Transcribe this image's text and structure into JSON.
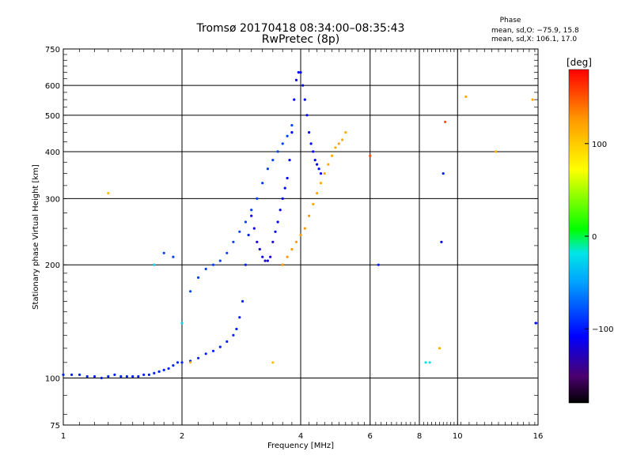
{
  "chart_data": {
    "type": "scatter",
    "title": "Tromsø 20170418 08:34:00–08:35:43",
    "subtitle": "RwPretec (8p)",
    "xlabel": "Frequency [MHz]",
    "ylabel": "Stationary phase Virtual Height [km]",
    "x_scale": "log",
    "y_scale": "log",
    "xlim": [
      1,
      16
    ],
    "ylim": [
      75,
      750
    ],
    "x_ticks": [
      "1",
      "2",
      "4",
      "6",
      "8",
      "10",
      "16"
    ],
    "y_ticks": [
      "750",
      "600",
      "500",
      "400",
      "300",
      "200",
      "100",
      "75"
    ],
    "grid": true,
    "phase_header": "Phase",
    "phase_stats": [
      "mean, sd,O: −75.9, 15.8",
      "mean, sd,X: 106.1, 17.0"
    ],
    "colorbar": {
      "label": "[deg]",
      "range": [
        -180,
        180
      ],
      "ticks": [
        "100",
        "0",
        "−100"
      ],
      "colors": [
        "#000000",
        "#4b006e",
        "#0000ff",
        "#00a0ff",
        "#00e6e6",
        "#00ff00",
        "#ffff00",
        "#ff9900",
        "#ff0000"
      ]
    },
    "series": [
      {
        "color_by": "phase",
        "points": [
          [
            1.0,
            102,
            -100
          ],
          [
            1.05,
            102,
            -100
          ],
          [
            1.1,
            102,
            -100
          ],
          [
            1.15,
            101,
            -100
          ],
          [
            1.2,
            101,
            -100
          ],
          [
            1.25,
            100,
            -100
          ],
          [
            1.3,
            101,
            -100
          ],
          [
            1.35,
            102,
            -100
          ],
          [
            1.4,
            101,
            -100
          ],
          [
            1.45,
            101,
            -100
          ],
          [
            1.5,
            101,
            -100
          ],
          [
            1.55,
            101,
            -100
          ],
          [
            1.6,
            102,
            -100
          ],
          [
            1.65,
            102,
            -100
          ],
          [
            1.7,
            103,
            -100
          ],
          [
            1.75,
            104,
            -100
          ],
          [
            1.8,
            105,
            -100
          ],
          [
            1.85,
            106,
            -100
          ],
          [
            1.9,
            108,
            -100
          ],
          [
            1.95,
            110,
            -100
          ],
          [
            2.0,
            110,
            -100
          ],
          [
            2.1,
            111,
            -100
          ],
          [
            2.2,
            113,
            -100
          ],
          [
            2.3,
            116,
            -100
          ],
          [
            2.4,
            118,
            -100
          ],
          [
            2.5,
            121,
            -100
          ],
          [
            2.6,
            125,
            -100
          ],
          [
            2.7,
            130,
            -100
          ],
          [
            2.75,
            135,
            -100
          ],
          [
            2.8,
            145,
            -100
          ],
          [
            2.85,
            160,
            -100
          ],
          [
            2.9,
            200,
            -100
          ],
          [
            2.95,
            240,
            -100
          ],
          [
            3.0,
            270,
            -120
          ],
          [
            3.05,
            250,
            -120
          ],
          [
            3.1,
            230,
            -120
          ],
          [
            3.15,
            220,
            -120
          ],
          [
            3.2,
            210,
            -120
          ],
          [
            3.25,
            205,
            -120
          ],
          [
            3.3,
            205,
            -120
          ],
          [
            3.35,
            210,
            -120
          ],
          [
            3.4,
            230,
            -120
          ],
          [
            3.45,
            245,
            -110
          ],
          [
            3.5,
            260,
            -110
          ],
          [
            3.55,
            280,
            -110
          ],
          [
            3.6,
            300,
            -110
          ],
          [
            3.65,
            320,
            -110
          ],
          [
            3.7,
            340,
            -110
          ],
          [
            3.75,
            380,
            -110
          ],
          [
            3.8,
            450,
            -110
          ],
          [
            3.85,
            550,
            -110
          ],
          [
            3.9,
            620,
            -110
          ],
          [
            3.95,
            650,
            -110
          ],
          [
            4.0,
            650,
            -110
          ],
          [
            4.05,
            600,
            -110
          ],
          [
            4.1,
            550,
            -110
          ],
          [
            4.15,
            500,
            -110
          ],
          [
            4.2,
            450,
            -110
          ],
          [
            4.25,
            420,
            -110
          ],
          [
            4.3,
            400,
            -110
          ],
          [
            4.35,
            380,
            -110
          ],
          [
            4.4,
            370,
            -110
          ],
          [
            4.45,
            360,
            -110
          ],
          [
            4.5,
            350,
            -110
          ],
          [
            2.1,
            170,
            -90
          ],
          [
            2.2,
            185,
            -90
          ],
          [
            2.3,
            195,
            -90
          ],
          [
            2.4,
            200,
            -90
          ],
          [
            2.5,
            205,
            -90
          ],
          [
            2.6,
            215,
            -90
          ],
          [
            2.7,
            230,
            -90
          ],
          [
            2.8,
            245,
            -90
          ],
          [
            2.9,
            260,
            -90
          ],
          [
            3.0,
            280,
            -90
          ],
          [
            3.1,
            300,
            -90
          ],
          [
            3.2,
            330,
            -90
          ],
          [
            3.3,
            360,
            -90
          ],
          [
            3.4,
            380,
            -90
          ],
          [
            3.5,
            400,
            -90
          ],
          [
            3.6,
            420,
            -90
          ],
          [
            3.7,
            440,
            -90
          ],
          [
            3.8,
            470,
            -90
          ],
          [
            3.4,
            110,
            100
          ],
          [
            3.6,
            200,
            120
          ],
          [
            3.7,
            210,
            120
          ],
          [
            3.8,
            220,
            120
          ],
          [
            3.9,
            230,
            120
          ],
          [
            4.0,
            240,
            120
          ],
          [
            4.1,
            250,
            120
          ],
          [
            4.2,
            270,
            120
          ],
          [
            4.3,
            290,
            110
          ],
          [
            4.4,
            310,
            110
          ],
          [
            4.5,
            330,
            110
          ],
          [
            4.6,
            350,
            110
          ],
          [
            4.7,
            370,
            110
          ],
          [
            4.8,
            390,
            110
          ],
          [
            4.9,
            410,
            110
          ],
          [
            5.0,
            420,
            110
          ],
          [
            5.1,
            430,
            110
          ],
          [
            5.2,
            450,
            110
          ],
          [
            1.3,
            310,
            100
          ],
          [
            1.7,
            200,
            -30
          ],
          [
            1.8,
            215,
            -90
          ],
          [
            1.9,
            210,
            -90
          ],
          [
            2.0,
            140,
            -30
          ],
          [
            2.1,
            110,
            100
          ],
          [
            6.3,
            200,
            -100
          ],
          [
            8.3,
            110,
            -20
          ],
          [
            8.5,
            110,
            -20
          ],
          [
            9.0,
            120,
            110
          ],
          [
            10.5,
            560,
            110
          ],
          [
            12.5,
            400,
            110
          ],
          [
            15.5,
            550,
            110
          ],
          [
            15.8,
            140,
            -110
          ],
          [
            9.3,
            480,
            150
          ],
          [
            9.2,
            350,
            -100
          ],
          [
            9.1,
            230,
            -110
          ],
          [
            6.0,
            390,
            150
          ]
        ]
      }
    ]
  }
}
